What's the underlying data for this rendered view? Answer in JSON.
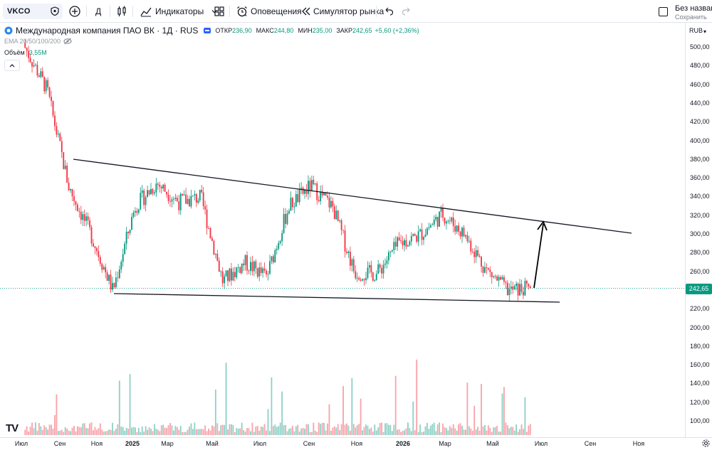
{
  "toolbar": {
    "symbol": "VKCO",
    "interval": "Д",
    "indicators_label": "Индикаторы",
    "alerts_label": "Оповещения",
    "replay_label": "Симулятор рынка",
    "layout_name": "Без названи",
    "layout_status": "Сохранить"
  },
  "legend": {
    "title": "Международная компания ПАО ВК · 1Д · RUS",
    "open_label": "ОТКР",
    "open_value": "236,90",
    "high_label": "МАКС",
    "high_value": "244,80",
    "low_label": "МИН",
    "low_value": "235,00",
    "close_label": "ЗАКР",
    "close_value": "242,65",
    "change_value": "+5,60 (+2,36%)",
    "ema_label": "EMA 20/50/100/200",
    "volume_label": "Объём",
    "volume_value": "3,55M"
  },
  "price_scale": {
    "currency": "RUB",
    "ticks": [
      "500,00",
      "480,00",
      "460,00",
      "440,00",
      "420,00",
      "400,00",
      "380,00",
      "360,00",
      "340,00",
      "320,00",
      "300,00",
      "280,00",
      "260,00",
      "240,00",
      "220,00",
      "200,00",
      "180,00",
      "160,00",
      "140,00",
      "120,00",
      "100,00"
    ],
    "last_price": "242,65"
  },
  "time_scale": {
    "ticks": [
      {
        "label": "Июл",
        "bold": false
      },
      {
        "label": "Сен",
        "bold": false
      },
      {
        "label": "Ноя",
        "bold": false
      },
      {
        "label": "2025",
        "bold": true
      },
      {
        "label": "Мар",
        "bold": false
      },
      {
        "label": "Май",
        "bold": false
      },
      {
        "label": "Июл",
        "bold": false
      },
      {
        "label": "Сен",
        "bold": false
      },
      {
        "label": "Ноя",
        "bold": false
      },
      {
        "label": "2026",
        "bold": true
      },
      {
        "label": "Мар",
        "bold": false
      },
      {
        "label": "Май",
        "bold": false
      },
      {
        "label": "Июл",
        "bold": false
      },
      {
        "label": "Сен",
        "bold": false
      },
      {
        "label": "Ноя",
        "bold": false
      }
    ]
  },
  "colors": {
    "up": "#089981",
    "down": "#f23645",
    "accent": "#2962ff",
    "trendline": "#131722"
  },
  "logo_text": "TV",
  "chart_data": {
    "type": "candlestick",
    "price_range": [
      90,
      508
    ],
    "trendlines": [
      {
        "name": "",
        "from": [
          380,
          "Сен"
        ],
        "to": [
          302,
          "Ноя 2026"
        ]
      },
      {
        "name": "",
        "from": [
          236,
          "Ноя"
        ],
        "to": [
          228,
          "Июл 2026"
        ]
      }
    ],
    "arrow": {
      "from_price": 244,
      "to_price": 318
    },
    "candles_approx": [
      {
        "date": "Июл",
        "price": 500
      },
      {
        "date": "Авг",
        "price": 455
      },
      {
        "date": "Сен",
        "price": 350
      },
      {
        "date": "Окт",
        "price": 300
      },
      {
        "date": "Ноя",
        "price": 240
      },
      {
        "date": "Дек",
        "price": 330
      },
      {
        "date": "Янв 2025",
        "price": 355
      },
      {
        "date": "Фев",
        "price": 335
      },
      {
        "date": "Мар",
        "price": 340
      },
      {
        "date": "Апр",
        "price": 250
      },
      {
        "date": "Май",
        "price": 270
      },
      {
        "date": "Июн",
        "price": 255
      },
      {
        "date": "Июл",
        "price": 330
      },
      {
        "date": "Авг",
        "price": 352
      },
      {
        "date": "Сен",
        "price": 330
      },
      {
        "date": "Окт",
        "price": 260
      },
      {
        "date": "Ноя",
        "price": 258
      },
      {
        "date": "Дек",
        "price": 290
      },
      {
        "date": "Янв 2026",
        "price": 300
      },
      {
        "date": "Фев",
        "price": 322
      },
      {
        "date": "Мар",
        "price": 300
      },
      {
        "date": "Апр",
        "price": 262
      },
      {
        "date": "Май",
        "price": 240
      },
      {
        "date": "Июн",
        "price": 242.65
      }
    ]
  }
}
